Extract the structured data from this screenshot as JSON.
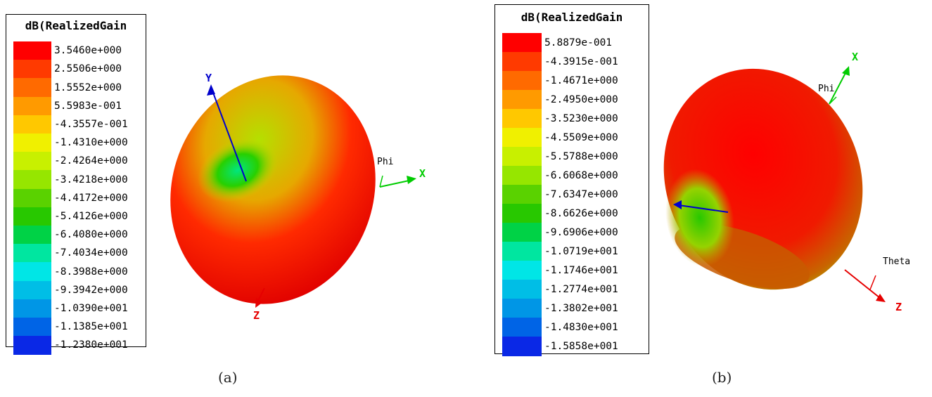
{
  "panels": [
    {
      "legend_title": "dB(RealizedGain",
      "ticks": [
        "3.5460e+000",
        "2.5506e+000",
        "1.5552e+000",
        "5.5983e-001",
        "-4.3557e-001",
        "-1.4310e+000",
        "-2.4264e+000",
        "-3.4218e+000",
        "-4.4172e+000",
        "-5.4126e+000",
        "-6.4080e+000",
        "-7.4034e+000",
        "-8.3988e+000",
        "-9.3942e+000",
        "-1.0390e+001",
        "-1.1385e+001",
        "-1.2380e+001"
      ],
      "axis_labels": {
        "y": "Y",
        "x": "X",
        "z": "Z",
        "phi": "Phi"
      },
      "caption": "(a)"
    },
    {
      "legend_title": "dB(RealizedGain",
      "ticks": [
        "5.8879e-001",
        "-4.3915e-001",
        "-1.4671e+000",
        "-2.4950e+000",
        "-3.5230e+000",
        "-4.5509e+000",
        "-5.5788e+000",
        "-6.6068e+000",
        "-7.6347e+000",
        "-8.6626e+000",
        "-9.6906e+000",
        "-1.0719e+001",
        "-1.1746e+001",
        "-1.2774e+001",
        "-1.3802e+001",
        "-1.4830e+001",
        "-1.5858e+001"
      ],
      "axis_labels": {
        "x": "X",
        "z": "Z",
        "phi": "Phi",
        "theta": "Theta"
      },
      "caption": "(b)"
    }
  ],
  "colors": {
    "scale": [
      "#ff0000",
      "#ff3a00",
      "#ff6a00",
      "#ff9a00",
      "#ffc800",
      "#f0f000",
      "#c8f000",
      "#96e600",
      "#5ad200",
      "#28c800",
      "#00d246",
      "#00e6a0",
      "#00e6e6",
      "#00bee6",
      "#0096e6",
      "#0064e6",
      "#0a28e6"
    ],
    "axis_x": "#00cc00",
    "axis_y": "#0000cc",
    "axis_z": "#e60000"
  }
}
